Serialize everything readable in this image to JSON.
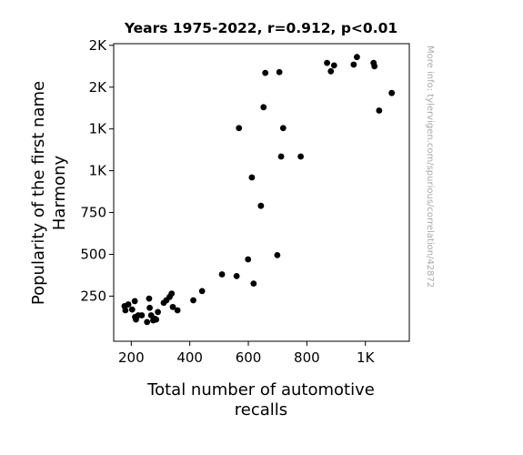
{
  "chart_data": {
    "type": "scatter",
    "title": "Years 1975-2022, r=0.912, p<0.01",
    "xlabel_lines": [
      "Total number of automotive",
      "recalls"
    ],
    "ylabel_lines": [
      "Popularity of the first name",
      "Harmony"
    ],
    "xlim": [
      140,
      1150
    ],
    "ylim": [
      -20,
      1760
    ],
    "x_ticks": [
      {
        "value": 200,
        "label": "200"
      },
      {
        "value": 400,
        "label": "400"
      },
      {
        "value": 600,
        "label": "600"
      },
      {
        "value": 800,
        "label": "800"
      },
      {
        "value": 1000,
        "label": "1K"
      }
    ],
    "y_ticks": [
      {
        "value": 250,
        "label": "250"
      },
      {
        "value": 500,
        "label": "500"
      },
      {
        "value": 750,
        "label": "750"
      },
      {
        "value": 1000,
        "label": "1K"
      },
      {
        "value": 1250,
        "label": "1K"
      },
      {
        "value": 1500,
        "label": "2K"
      },
      {
        "value": 1750,
        "label": "2K"
      }
    ],
    "grid": false,
    "marker_color": "#000000",
    "watermark": "More info: tylervigen.com/spurious/correlation/42872",
    "points": [
      [
        177,
        190
      ],
      [
        180,
        165
      ],
      [
        190,
        200
      ],
      [
        203,
        170
      ],
      [
        212,
        220
      ],
      [
        213,
        125
      ],
      [
        216,
        110
      ],
      [
        224,
        135
      ],
      [
        236,
        135
      ],
      [
        254,
        95
      ],
      [
        261,
        235
      ],
      [
        263,
        180
      ],
      [
        268,
        135
      ],
      [
        275,
        105
      ],
      [
        280,
        115
      ],
      [
        285,
        110
      ],
      [
        291,
        155
      ],
      [
        311,
        210
      ],
      [
        320,
        225
      ],
      [
        331,
        245
      ],
      [
        338,
        265
      ],
      [
        342,
        185
      ],
      [
        358,
        165
      ],
      [
        412,
        225
      ],
      [
        442,
        280
      ],
      [
        510,
        380
      ],
      [
        560,
        370
      ],
      [
        568,
        1255
      ],
      [
        599,
        470
      ],
      [
        612,
        960
      ],
      [
        618,
        325
      ],
      [
        643,
        790
      ],
      [
        652,
        1380
      ],
      [
        658,
        1585
      ],
      [
        699,
        495
      ],
      [
        706,
        1590
      ],
      [
        712,
        1085
      ],
      [
        719,
        1255
      ],
      [
        779,
        1085
      ],
      [
        869,
        1645
      ],
      [
        882,
        1595
      ],
      [
        893,
        1630
      ],
      [
        960,
        1635
      ],
      [
        971,
        1680
      ],
      [
        1028,
        1645
      ],
      [
        1031,
        1625
      ],
      [
        1047,
        1360
      ],
      [
        1090,
        1465
      ]
    ]
  }
}
